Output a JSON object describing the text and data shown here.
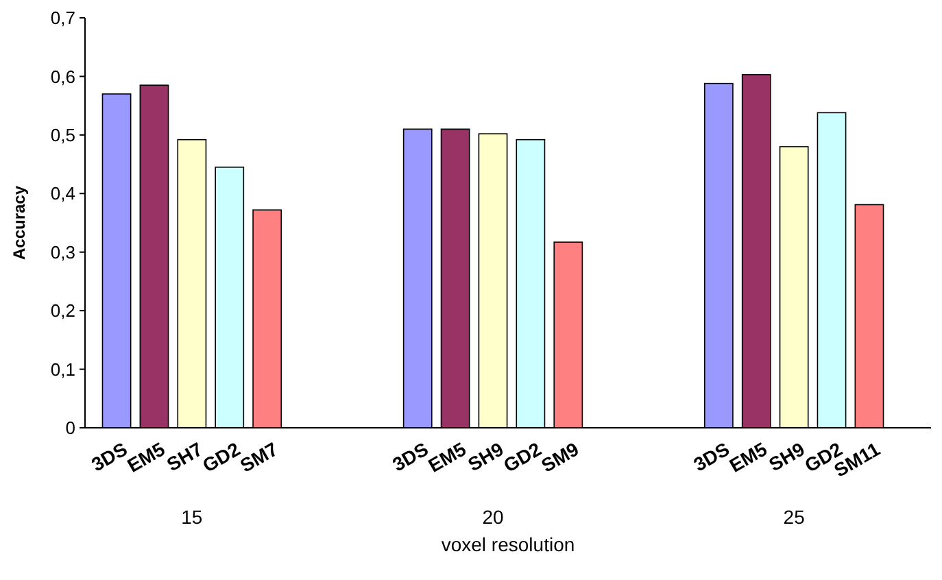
{
  "chart_data": {
    "type": "bar",
    "xlabel": "voxel resolution",
    "ylabel": "Accuracy",
    "categories": [
      "3DS",
      "EM5",
      "SH7",
      "GD2",
      "SM7",
      null,
      null,
      null,
      "3DS",
      "EM5",
      "SH9",
      "GD2",
      "SM9",
      null,
      null,
      null,
      "3DS",
      "EM5",
      "SH9",
      "GD2",
      "SM11"
    ],
    "values": [
      0.57,
      0.585,
      0.492,
      0.445,
      0.372,
      null,
      null,
      null,
      0.51,
      0.51,
      0.502,
      0.492,
      0.317,
      null,
      null,
      null,
      0.588,
      0.603,
      0.48,
      0.538,
      0.381
    ],
    "colors": [
      "#9999ff",
      "#993366",
      "#ffffcc",
      "#ccffff",
      "#ff8080",
      null,
      null,
      null,
      "#9999ff",
      "#993366",
      "#ffffcc",
      "#ccffff",
      "#ff8080",
      null,
      null,
      null,
      "#9999ff",
      "#993366",
      "#ffffcc",
      "#ccffff",
      "#ff8080"
    ],
    "ylim": [
      0,
      0.7
    ],
    "yticks": [
      0,
      {
        "value": 0.1,
        "label": "0,1"
      },
      {
        "value": 0.2,
        "label": "0,2"
      },
      {
        "value": 0.3,
        "label": "0,3"
      },
      {
        "value": 0.4,
        "label": "0,4"
      },
      {
        "value": 0.5,
        "label": "0,5"
      },
      {
        "value": 0.6,
        "label": "0,6"
      },
      {
        "value": 0.7,
        "label": "0,7"
      }
    ],
    "annotations": [
      "15",
      "20",
      "25"
    ],
    "grid": false
  }
}
